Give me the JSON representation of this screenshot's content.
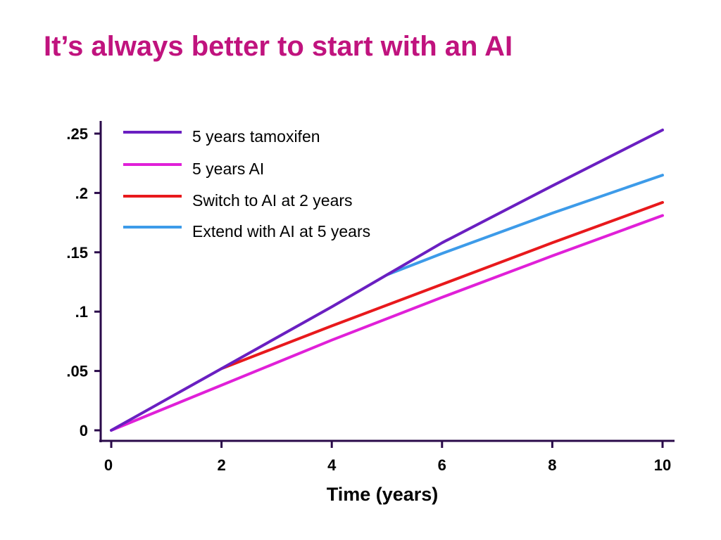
{
  "slide": {
    "title": "It’s always better to start with an AI"
  },
  "chart_data": {
    "type": "line",
    "title": "It’s always better to start with an AI",
    "xlabel": "Time (years)",
    "ylabel": "",
    "xlim": [
      0,
      10
    ],
    "ylim": [
      0,
      0.25
    ],
    "x_ticks": [
      0,
      2,
      4,
      6,
      8,
      10
    ],
    "x_tick_labels": [
      "0",
      "2",
      "4",
      "6",
      "8",
      "10"
    ],
    "y_ticks": [
      0,
      0.05,
      0.1,
      0.15,
      0.2,
      0.25
    ],
    "y_tick_labels": [
      "0",
      ".05",
      ".1",
      ".15",
      ".2",
      ".25"
    ],
    "grid": false,
    "legend_position": "top-left",
    "series": [
      {
        "name": "5 years tamoxifen",
        "color": "#6a1fc1",
        "x": [
          0,
          2,
          4,
          5,
          6,
          8,
          10
        ],
        "y": [
          0,
          0.052,
          0.104,
          0.131,
          0.158,
          0.206,
          0.253
        ]
      },
      {
        "name": "5 years AI",
        "color": "#e020d8",
        "x": [
          0,
          2,
          4,
          6,
          8,
          10
        ],
        "y": [
          0,
          0.038,
          0.076,
          0.112,
          0.147,
          0.181
        ]
      },
      {
        "name": "Switch to AI at 2 years",
        "color": "#e8191c",
        "x": [
          2,
          4,
          6,
          8,
          10
        ],
        "y": [
          0.052,
          0.088,
          0.123,
          0.158,
          0.192
        ]
      },
      {
        "name": "Extend with AI at 5 years",
        "color": "#3d9be9",
        "x": [
          5,
          6,
          8,
          10
        ],
        "y": [
          0.131,
          0.149,
          0.183,
          0.215
        ]
      }
    ]
  }
}
